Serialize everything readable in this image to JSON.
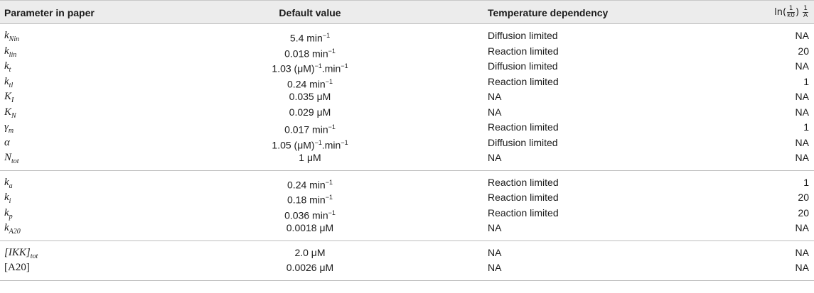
{
  "header": {
    "col1": "Parameter in paper",
    "col2": "Default value",
    "col3": "Temperature dependency",
    "col4_prefix": "ln",
    "col4_frac1_num": "1",
    "col4_frac1_den": "k0",
    "col4_frac2_num": "1",
    "col4_frac2_den": "A"
  },
  "groups": [
    {
      "rows": [
        {
          "sym": "k",
          "sub": "Nin",
          "value": "5.4 min",
          "sup": "−1",
          "dep": "Diffusion limited",
          "ln": "NA"
        },
        {
          "sym": "k",
          "sub": "lin",
          "value": "0.018 min",
          "sup": "−1",
          "dep": "Reaction limited",
          "ln": "20"
        },
        {
          "sym": "k",
          "sub": "t",
          "value": "1.03 (μM)",
          "sup": "−1",
          "value_tail": ".min",
          "sup2": "−1",
          "dep": "Diffusion limited",
          "ln": "NA"
        },
        {
          "sym": "k",
          "sub": "tl",
          "value": "0.24 min",
          "sup": "−1",
          "dep": "Reaction limited",
          "ln": "1"
        },
        {
          "sym": "K",
          "sub": "I",
          "value": "0.035 μM",
          "dep": "NA",
          "ln": "NA"
        },
        {
          "sym": "K",
          "sub": "N",
          "value": "0.029 μM",
          "dep": "NA",
          "ln": "NA"
        },
        {
          "sym": "γ",
          "sub": "m",
          "value": "0.017 min",
          "sup": "−1",
          "dep": "Reaction limited",
          "ln": "1"
        },
        {
          "sym": "α",
          "sub": "",
          "value": "1.05 (μM)",
          "sup": "−1",
          "value_tail": ".min",
          "sup2": "−1",
          "dep": "Diffusion limited",
          "ln": "NA"
        },
        {
          "sym": "N",
          "sub": "tot",
          "value": "1 μM",
          "dep": "NA",
          "ln": "NA"
        }
      ]
    },
    {
      "rows": [
        {
          "sym": "k",
          "sub": "a",
          "value": "0.24 min",
          "sup": "−1",
          "dep": "Reaction limited",
          "ln": "1"
        },
        {
          "sym": "k",
          "sub": "i",
          "value": "0.18 min",
          "sup": "−1",
          "dep": "Reaction limited",
          "ln": "20"
        },
        {
          "sym": "k",
          "sub": "p",
          "value": "0.036 min",
          "sup": "−1",
          "dep": "Reaction limited",
          "ln": "20"
        },
        {
          "sym": "k",
          "sub": "A20",
          "value": "0.0018 μM",
          "dep": "NA",
          "ln": "NA"
        }
      ]
    },
    {
      "rows": [
        {
          "sym": "[IKK]",
          "sub": "tot",
          "value": "2.0 μM",
          "dep": "NA",
          "ln": "NA"
        },
        {
          "sym": "[A20]",
          "sub": "",
          "value": "0.0026 μM",
          "dep": "NA",
          "ln": "NA",
          "upright": true
        }
      ]
    }
  ]
}
